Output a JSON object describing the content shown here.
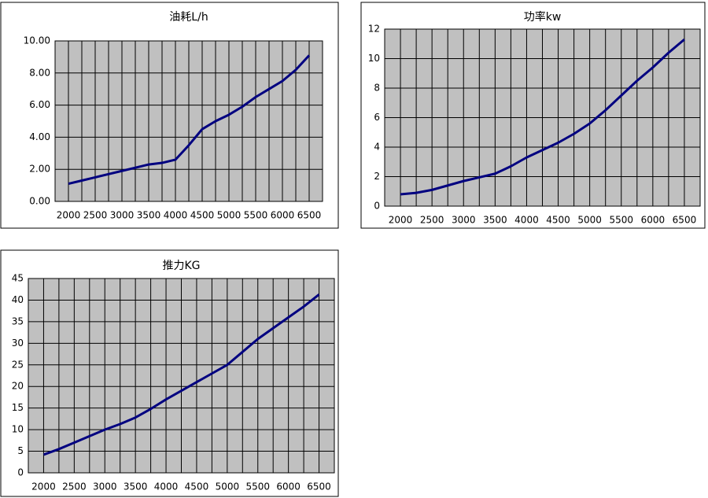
{
  "chart_data": [
    {
      "type": "line",
      "title": "油耗L/h",
      "x": [
        2000,
        2250,
        2500,
        2750,
        3000,
        3250,
        3500,
        3750,
        4000,
        4250,
        4500,
        4750,
        5000,
        5250,
        5500,
        5750,
        6000,
        6250,
        6500
      ],
      "values": [
        1.1,
        1.3,
        1.5,
        1.7,
        1.9,
        2.1,
        2.3,
        2.4,
        2.6,
        3.5,
        4.5,
        5.0,
        5.4,
        5.9,
        6.5,
        7.0,
        7.5,
        8.2,
        9.1
      ],
      "color": "#000080",
      "xlim": [
        1750,
        6750
      ],
      "xticks": [
        2000,
        2500,
        3000,
        3500,
        4000,
        4500,
        5000,
        5500,
        6000,
        6500
      ],
      "ylim": [
        0,
        10
      ],
      "yticks": [
        {
          "value": 0,
          "label": "0.00"
        },
        {
          "value": 2,
          "label": "2.00"
        },
        {
          "value": 4,
          "label": "4.00"
        },
        {
          "value": 6,
          "label": "6.00"
        },
        {
          "value": 8,
          "label": "8.00"
        },
        {
          "value": 10,
          "label": "10.00"
        }
      ],
      "grid": true
    },
    {
      "type": "line",
      "title": "功率kw",
      "x": [
        2000,
        2250,
        2500,
        2750,
        3000,
        3250,
        3500,
        3750,
        4000,
        4250,
        4500,
        4750,
        5000,
        5250,
        5500,
        5750,
        6000,
        6250,
        6500
      ],
      "values": [
        0.8,
        0.9,
        1.1,
        1.4,
        1.7,
        1.95,
        2.2,
        2.7,
        3.3,
        3.8,
        4.3,
        4.9,
        5.6,
        6.5,
        7.5,
        8.5,
        9.4,
        10.4,
        11.3
      ],
      "color": "#000080",
      "xlim": [
        1750,
        6750
      ],
      "xticks": [
        2000,
        2500,
        3000,
        3500,
        4000,
        4500,
        5000,
        5500,
        6000,
        6500
      ],
      "ylim": [
        0,
        12
      ],
      "yticks": [
        0,
        2,
        4,
        6,
        8,
        10,
        12
      ],
      "grid": true
    },
    {
      "type": "line",
      "title": "推力KG",
      "x": [
        2000,
        2250,
        2500,
        2750,
        3000,
        3250,
        3500,
        3750,
        4000,
        4250,
        4500,
        4750,
        5000,
        5250,
        5500,
        5750,
        6000,
        6250,
        6500
      ],
      "values": [
        4.2,
        5.5,
        7,
        8.5,
        10,
        11.3,
        12.8,
        14.8,
        17,
        19,
        21,
        23,
        25,
        28,
        31,
        33.5,
        36,
        38.5,
        41.3
      ],
      "color": "#000080",
      "xlim": [
        1750,
        6750
      ],
      "xticks": [
        2000,
        2500,
        3000,
        3500,
        4000,
        4500,
        5000,
        5500,
        6000,
        6500
      ],
      "ylim": [
        0,
        45
      ],
      "yticks": [
        0,
        5,
        10,
        15,
        20,
        25,
        30,
        35,
        40,
        45
      ],
      "grid": true
    }
  ]
}
